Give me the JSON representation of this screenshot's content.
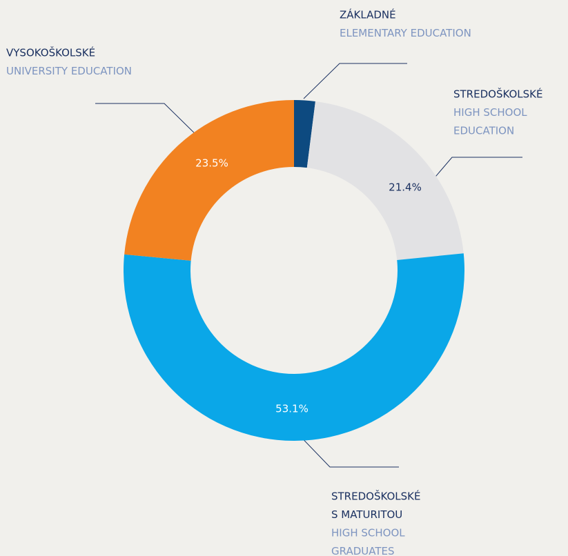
{
  "chart_data": {
    "type": "donut",
    "categories": [
      [
        "ZÁKLADNÉ"
      ],
      [
        "STREDOŠKOLSKÉ"
      ],
      [
        "STREDOŠKOLSKÉ",
        "S MATURITOU"
      ],
      [
        "VYSOKOŠKOLSKÉ"
      ]
    ],
    "category_translations": [
      [
        "ELEMENTARY EDUCATION"
      ],
      [
        "HIGH SCHOOL",
        "EDUCATION"
      ],
      [
        "HIGH SCHOOL",
        "GRADUATES"
      ],
      [
        "UNIVERSITY EDUCATION"
      ]
    ],
    "values": [
      2.0,
      21.4,
      53.1,
      23.5
    ],
    "value_labels": [
      null,
      "21.4%",
      "53.1%",
      "23.5%"
    ],
    "colors": [
      "#0d4a80",
      "#e2e2e4",
      "#0aa7e8",
      "#f28221"
    ],
    "value_label_colors": [
      null,
      "#1a3060",
      "#ffffff",
      "#ffffff"
    ]
  }
}
